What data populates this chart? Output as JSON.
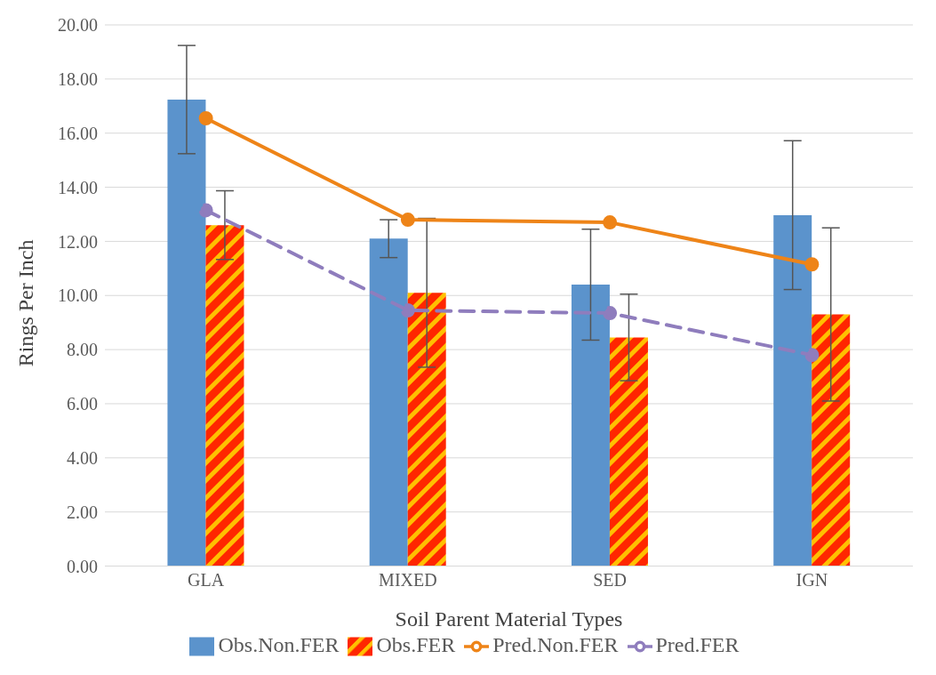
{
  "chart_data": {
    "type": "bar",
    "xlabel": "Soil Parent Material Types",
    "ylabel": "Rings Per Inch",
    "categories": [
      "GLA",
      "MIXED",
      "SED",
      "IGN"
    ],
    "series": [
      {
        "name": "Obs.Non.FER",
        "color": "#5b93cc",
        "values": [
          17.24,
          12.1,
          10.4,
          12.97
        ],
        "errors": [
          2.0,
          0.7,
          2.05,
          2.75
        ]
      },
      {
        "name": "Obs.FER",
        "color": "#ff2600",
        "values": [
          12.6,
          10.1,
          8.45,
          9.3
        ],
        "errors": [
          1.27,
          2.75,
          1.6,
          3.2
        ]
      },
      {
        "name": "Pred.Non.FER",
        "type": "line",
        "color": "#ee8418",
        "values": [
          16.55,
          12.8,
          12.7,
          11.15
        ],
        "marker": "circle",
        "line_style": "solid"
      },
      {
        "name": "Pred.FER",
        "type": "line",
        "color": "#8f7dbd",
        "values": [
          13.15,
          9.45,
          9.35,
          7.8
        ],
        "marker": "circle",
        "line_style": "dashed"
      }
    ],
    "ylim": [
      0,
      20
    ],
    "yticks": [
      {
        "value": 0,
        "label": "0.00"
      },
      {
        "value": 2,
        "label": "2.00"
      },
      {
        "value": 4,
        "label": "4.00"
      },
      {
        "value": 6,
        "label": "6.00"
      },
      {
        "value": 8,
        "label": "8.00"
      },
      {
        "value": 10,
        "label": "10.00"
      },
      {
        "value": 12,
        "label": "12.00"
      },
      {
        "value": 14,
        "label": "14.00"
      },
      {
        "value": 16,
        "label": "16.00"
      },
      {
        "value": 18,
        "label": "18.00"
      },
      {
        "value": 20,
        "label": "20.00"
      }
    ],
    "grid": "y",
    "legend": "bottom"
  }
}
